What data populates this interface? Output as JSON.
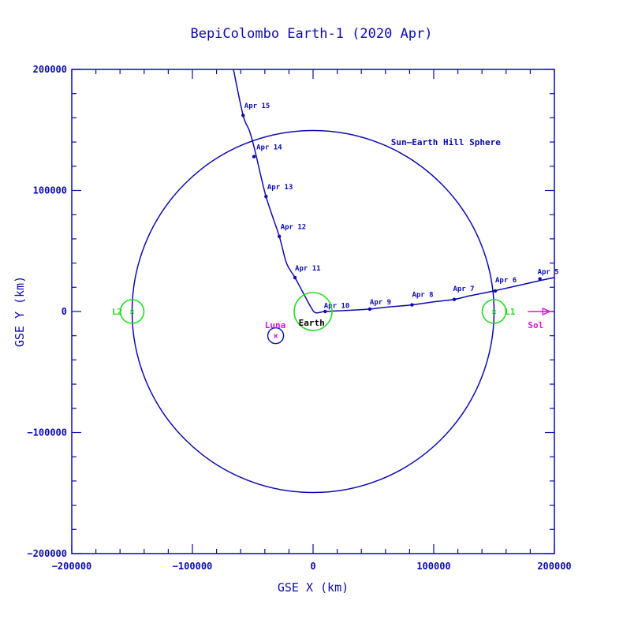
{
  "chart_data": {
    "type": "scatter",
    "title": "BepiColombo Earth-1 (2020 Apr)",
    "xlabel": "GSE X (km)",
    "ylabel": "GSE Y (km)",
    "xlim": [
      -200000,
      200000
    ],
    "ylim": [
      -200000,
      200000
    ],
    "xticks": [
      -200000,
      -100000,
      0,
      100000,
      200000
    ],
    "yticks": [
      -200000,
      -100000,
      0,
      100000,
      200000
    ],
    "xtick_labels": [
      "−200000",
      "−100000",
      "0",
      "100000",
      "200000"
    ],
    "ytick_labels": [
      "−200000",
      "−100000",
      "0",
      "100000",
      "200000"
    ],
    "grid": false,
    "hill_sphere": {
      "label": "Sun–Earth Hill Sphere",
      "radius": 150000,
      "label_at": [
        110000,
        140000
      ]
    },
    "trajectory": {
      "path": [
        [
          205000,
          29000
        ],
        [
          190000,
          26000
        ],
        [
          150000,
          17000
        ],
        [
          130000,
          13000
        ],
        [
          117000,
          10000
        ],
        [
          100000,
          8000
        ],
        [
          82000,
          5500
        ],
        [
          60000,
          3500
        ],
        [
          47000,
          2000
        ],
        [
          30000,
          1000
        ],
        [
          10000,
          0
        ],
        [
          2000,
          -1000
        ],
        [
          -2000,
          4000
        ],
        [
          -8000,
          15000
        ],
        [
          -15000,
          28000
        ],
        [
          -22000,
          40000
        ],
        [
          -28000,
          62000
        ],
        [
          -39000,
          95000
        ],
        [
          -47000,
          128000
        ],
        [
          -50000,
          140000
        ],
        [
          -53000,
          150000
        ],
        [
          -58000,
          162000
        ],
        [
          -66000,
          200000
        ],
        [
          -68000,
          210000
        ]
      ],
      "markers": [
        {
          "label": "Apr  5",
          "x": 188000,
          "y": 27000,
          "lx": 186000,
          "ly": 31000
        },
        {
          "label": "Apr  6",
          "x": 151000,
          "y": 17000,
          "lx": 151000,
          "ly": 24000
        },
        {
          "label": "Apr  7",
          "x": 117000,
          "y": 10000,
          "lx": 116000,
          "ly": 17000
        },
        {
          "label": "Apr  8",
          "x": 82000,
          "y": 5500,
          "lx": 82000,
          "ly": 12000
        },
        {
          "label": "Apr  9",
          "x": 47000,
          "y": 2000,
          "lx": 47000,
          "ly": 6000
        },
        {
          "label": "Apr 10",
          "x": 10000,
          "y": 0,
          "lx": 9000,
          "ly": 3000
        },
        {
          "label": "Apr 11",
          "x": -15000,
          "y": 28000,
          "lx": -15000,
          "ly": 34000
        },
        {
          "label": "Apr 12",
          "x": -28000,
          "y": 62000,
          "lx": -27000,
          "ly": 68000
        },
        {
          "label": "Apr 13",
          "x": -39000,
          "y": 95000,
          "lx": -38000,
          "ly": 101000
        },
        {
          "label": "Apr 14",
          "x": -49000,
          "y": 128000,
          "lx": -47000,
          "ly": 134000
        },
        {
          "label": "Apr 15",
          "x": -58000,
          "y": 162000,
          "lx": -57000,
          "ly": 168000
        }
      ]
    },
    "points": [
      {
        "name": "L2",
        "x": -150000,
        "y": 0,
        "label_at": [
          -158000,
          0
        ],
        "color": "#22dd22"
      },
      {
        "name": "L1",
        "x": 150000,
        "y": 0,
        "label_at": [
          159000,
          0
        ],
        "color": "#22dd22"
      },
      {
        "name": "Earth",
        "x": 0,
        "y": 0,
        "label_at": [
          -12000,
          -9000
        ],
        "color": "#22dd22"
      },
      {
        "name": "Luna",
        "x": -31000,
        "y": -20000,
        "label_at": [
          -40000,
          -11000
        ],
        "color": "#dd11dd"
      }
    ],
    "sol": {
      "label": "Sol",
      "arrow_from": 178000,
      "arrow_to": 195000,
      "label_at": [
        178000,
        -11000
      ],
      "color": "#dd11dd"
    }
  },
  "colors": {
    "axes": "#0b0bb0",
    "lagrange": "#22dd22",
    "earth_label": "#000000",
    "luna": "#dd11dd"
  }
}
